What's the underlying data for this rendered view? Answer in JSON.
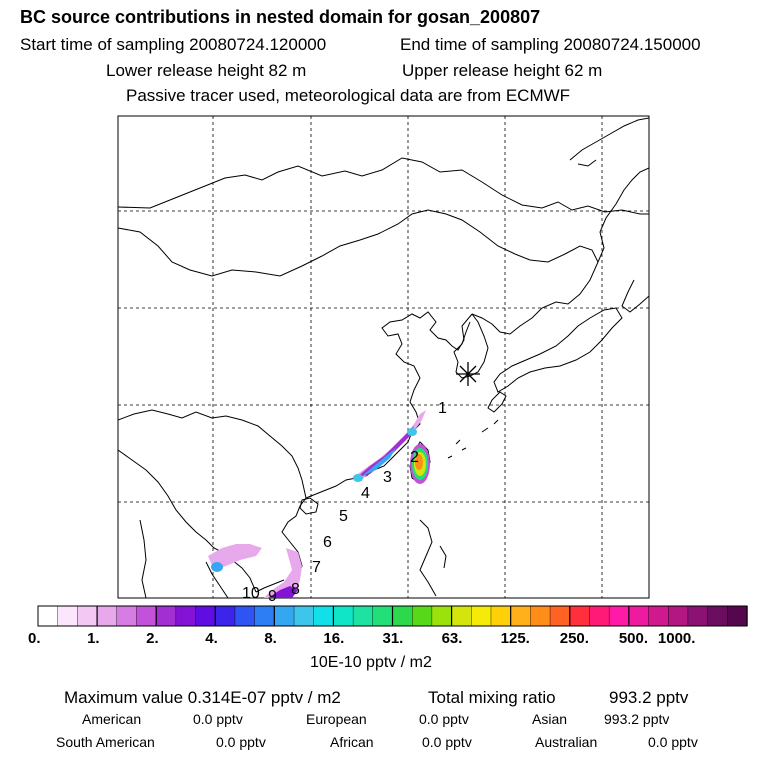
{
  "header": {
    "title": "BC  source contributions in nested domain for gosan_200807",
    "start_time": "Start time of sampling 20080724.120000",
    "end_time": "End time of sampling 20080724.150000",
    "lower_release": "Lower release height   82 m",
    "upper_release": "Upper release height   62 m",
    "tracer_note": "Passive tracer used, meteorological data are from ECMWF"
  },
  "map": {
    "receptor_marker": "asterisk-icon",
    "track_labels": [
      "1",
      "2",
      "3",
      "4",
      "5",
      "6",
      "7",
      "8",
      "9",
      "10"
    ]
  },
  "colorbar": {
    "ticks": [
      "0.",
      "1.",
      "2.",
      "4.",
      "8.",
      "16.",
      "31.",
      "63.",
      "125.",
      "250.",
      "500.",
      "1000."
    ],
    "colors": [
      "#ffffff",
      "#fbe6fb",
      "#f3c8f3",
      "#e8a8ec",
      "#d57de2",
      "#c152d9",
      "#a22fd2",
      "#8413d6",
      "#5f0de0",
      "#3d24ea",
      "#2f54f2",
      "#2d7ef4",
      "#35a7f0",
      "#3dc6ea",
      "#12e0e8",
      "#11e5c8",
      "#1de2a0",
      "#23df77",
      "#2cd94d",
      "#57d919",
      "#9be10b",
      "#d4e40d",
      "#f6ea08",
      "#ffd008",
      "#ffb01a",
      "#ff8d1a",
      "#ff6323",
      "#ff2f3d",
      "#ff1a78",
      "#ff1aa8",
      "#ee1a9f",
      "#d0188f",
      "#b21782",
      "#8b1273",
      "#6c0e5f",
      "#54074c"
    ],
    "units": "10E-10 pptv / m2"
  },
  "stats": {
    "max_value": "Maximum value  0.314E-07 pptv / m2",
    "total_mixing": "Total mixing ratio",
    "total_value": "993.2 pptv",
    "american_label": "American",
    "american_value": "0.0 pptv",
    "european_label": "European",
    "european_value": "0.0 pptv",
    "asian_label": "Asian",
    "asian_value": "993.2 pptv",
    "south_american_label": "South American",
    "south_american_value": "0.0 pptv",
    "african_label": "African",
    "african_value": "0.0 pptv",
    "australian_label": "Australian",
    "australian_value": "0.0 pptv"
  }
}
